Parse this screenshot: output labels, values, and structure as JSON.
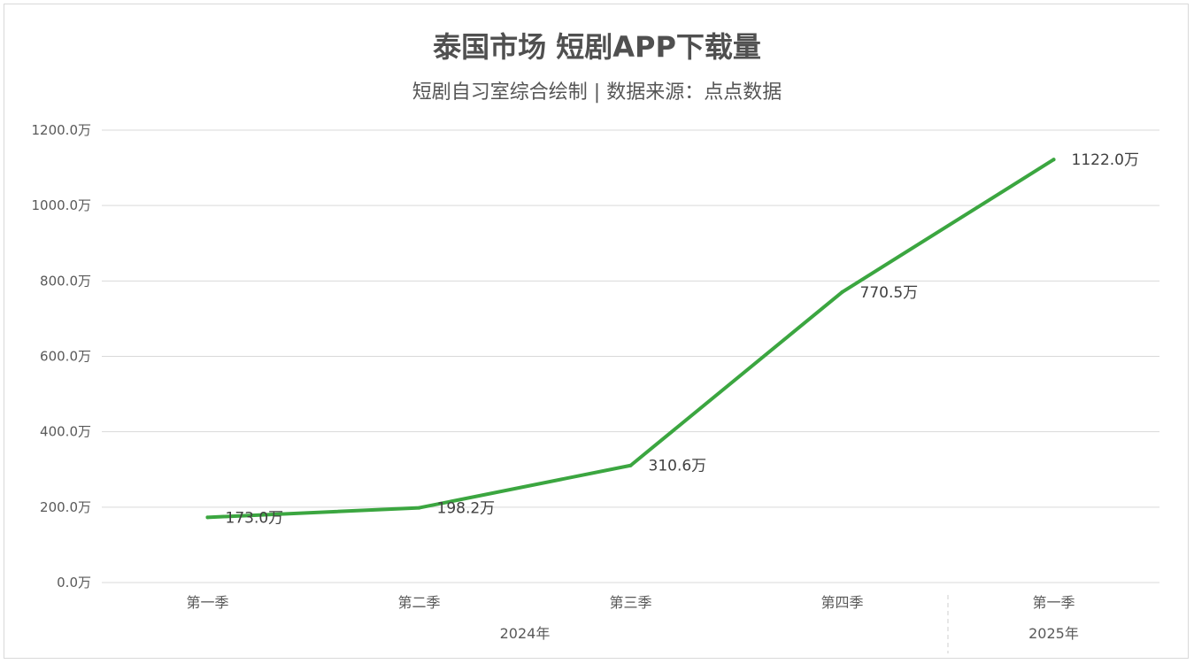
{
  "title": "泰国市场 短剧APP下载量",
  "subtitle": "短剧自习室综合绘制 | 数据来源：点点数据",
  "colors": {
    "line": "#3ba640",
    "grid": "#d9d9d9",
    "text": "#595959"
  },
  "chart_data": {
    "type": "line",
    "title": "泰国市场 短剧APP下载量",
    "subtitle": "短剧自习室综合绘制 | 数据来源：点点数据",
    "categories": [
      "第一季",
      "第二季",
      "第三季",
      "第四季",
      "第一季"
    ],
    "groups": [
      {
        "label": "2024年",
        "span": 4
      },
      {
        "label": "2025年",
        "span": 1
      }
    ],
    "values": [
      173.0,
      198.2,
      310.6,
      770.5,
      1122.0
    ],
    "value_labels": [
      "173.0万",
      "198.2万",
      "310.6万",
      "770.5万",
      "1122.0万"
    ],
    "yticks": [
      "0.0万",
      "200.0万",
      "400.0万",
      "600.0万",
      "800.0万",
      "1000.0万",
      "1200.0万"
    ],
    "ytick_values": [
      0,
      200,
      400,
      600,
      800,
      1000,
      1200
    ],
    "ylim": [
      0,
      1200
    ],
    "grid": true,
    "legend": "none"
  }
}
